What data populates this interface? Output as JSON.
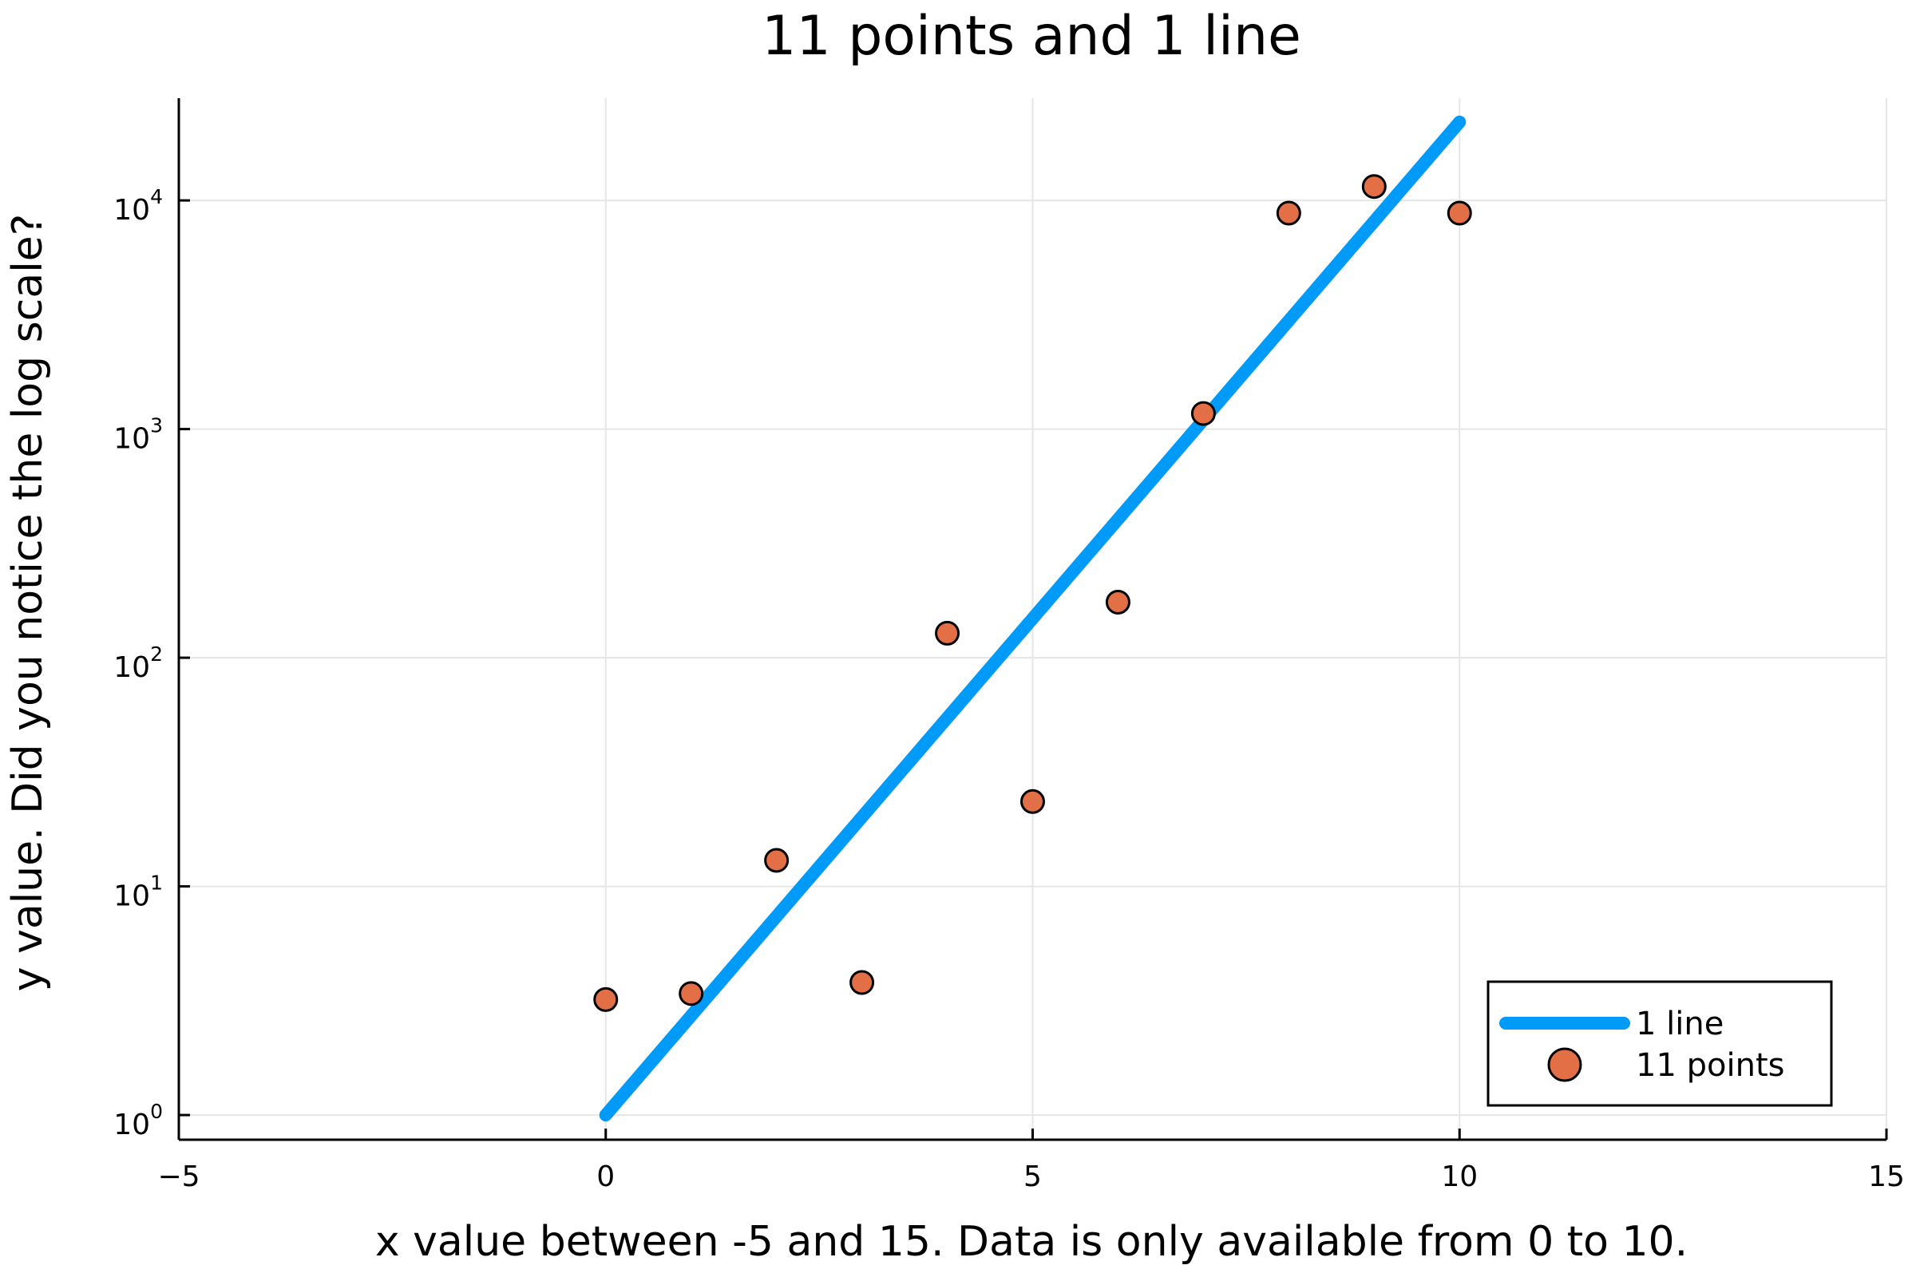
{
  "chart_data": {
    "type": "scatter",
    "title": "11 points and 1 line",
    "xlabel": "x value between -5 and 15. Data is only available from 0 to 10.",
    "ylabel": "y value. Did you notice the log scale?",
    "xlim": [
      -5,
      15
    ],
    "ylim": [
      0.78,
      28000
    ],
    "yscale": "log10",
    "grid": true,
    "legend_position": "bottom-right",
    "x_ticks": [
      {
        "value": -5,
        "label": "−5"
      },
      {
        "value": 0,
        "label": "0"
      },
      {
        "value": 5,
        "label": "5"
      },
      {
        "value": 10,
        "label": "10"
      },
      {
        "value": 15,
        "label": "15"
      }
    ],
    "y_ticks": [
      {
        "value": 1,
        "base": "10",
        "exp": "0"
      },
      {
        "value": 10,
        "base": "10",
        "exp": "1"
      },
      {
        "value": 100,
        "base": "10",
        "exp": "2"
      },
      {
        "value": 1000,
        "base": "10",
        "exp": "3"
      },
      {
        "value": 10000,
        "base": "10",
        "exp": "4"
      }
    ],
    "series": [
      {
        "name": "1 line",
        "kind": "line",
        "color": "#009af9",
        "x": [
          0,
          10
        ],
        "y": [
          1,
          22026
        ]
      },
      {
        "name": "11 points",
        "kind": "scatter",
        "color": "#e26f46",
        "x": [
          0,
          1,
          2,
          3,
          4,
          5,
          6,
          7,
          8,
          9,
          10
        ],
        "y": [
          3.2,
          3.4,
          13,
          3.8,
          128,
          23.5,
          175,
          1170,
          8800,
          11500,
          8800
        ]
      }
    ]
  }
}
